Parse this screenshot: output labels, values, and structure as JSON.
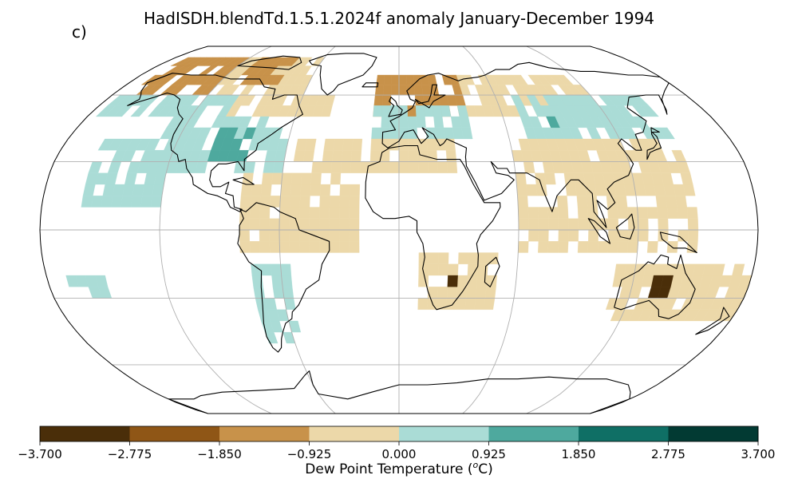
{
  "title": "HadISDH.blendTd.1.5.1.2024f anomaly January-December 1994",
  "panel_label": "c)",
  "colors": {
    "land": "#ffffff",
    "coast": "#000000",
    "grid": "#b0b0b0",
    "bins": [
      "#4a2e09",
      "#8f5616",
      "#c8924a",
      "#ecd8a9",
      "#aadcd6",
      "#4ea99e",
      "#0f6f65",
      "#023a33"
    ]
  },
  "colorbar": {
    "ticks": [
      "−3.700",
      "−2.775",
      "−1.850",
      "−0.925",
      "0.000",
      "0.925",
      "1.850",
      "2.775",
      "3.700"
    ],
    "label_main": "Dew Point Temperature (",
    "label_sup": "o",
    "label_end": "C)"
  },
  "chart_data": {
    "type": "heatmap",
    "projection": "Robinson",
    "variable": "Dew Point Temperature anomaly",
    "units": "°C",
    "levels": [
      -3.7,
      -2.775,
      -1.85,
      -0.925,
      0.0,
      0.925,
      1.85,
      2.775,
      3.7
    ],
    "regions": [
      {
        "lat": [
          60,
          80
        ],
        "lon": [
          -170,
          -120
        ],
        "bin": 2
      },
      {
        "lat": [
          60,
          80
        ],
        "lon": [
          -120,
          -60
        ],
        "bin": 3
      },
      {
        "lat": [
          65,
          80
        ],
        "lon": [
          -110,
          -80
        ],
        "bin": 2
      },
      {
        "lat": [
          50,
          60
        ],
        "lon": [
          -175,
          -100
        ],
        "bin": 4
      },
      {
        "lat": [
          50,
          60
        ],
        "lon": [
          -100,
          -40
        ],
        "bin": 3
      },
      {
        "lat": [
          50,
          70
        ],
        "lon": [
          -15,
          40
        ],
        "bin": 2
      },
      {
        "lat": [
          50,
          70
        ],
        "lon": [
          40,
          120
        ],
        "bin": 3
      },
      {
        "lat": [
          40,
          60
        ],
        "lon": [
          70,
          150
        ],
        "bin": 4
      },
      {
        "lat": [
          40,
          55
        ],
        "lon": [
          -15,
          40
        ],
        "bin": 4
      },
      {
        "lat": [
          25,
          50
        ],
        "lon": [
          -130,
          -60
        ],
        "bin": 4
      },
      {
        "lat": [
          10,
          40
        ],
        "lon": [
          -160,
          -120
        ],
        "bin": 4
      },
      {
        "lat": [
          25,
          40
        ],
        "lon": [
          -55,
          30
        ],
        "bin": 3
      },
      {
        "lat": [
          -10,
          40
        ],
        "lon": [
          60,
          150
        ],
        "bin": 3
      },
      {
        "lat": [
          -10,
          25
        ],
        "lon": [
          -80,
          -20
        ],
        "bin": 3
      },
      {
        "lat": [
          -50,
          -15
        ],
        "lon": [
          -75,
          -55
        ],
        "bin": 4
      },
      {
        "lat": [
          -35,
          -10
        ],
        "lon": [
          10,
          50
        ],
        "bin": 3
      },
      {
        "lat": [
          -40,
          -15
        ],
        "lon": [
          110,
          180
        ],
        "bin": 3
      },
      {
        "lat": [
          -30,
          -20
        ],
        "lon": [
          -170,
          -150
        ],
        "bin": 4
      },
      {
        "lat": [
          -30,
          -20
        ],
        "lon": [
          130,
          140
        ],
        "bin": 0
      },
      {
        "lat": [
          -25,
          -20
        ],
        "lon": [
          25,
          30
        ],
        "bin": 0
      },
      {
        "lat": [
          30,
          45
        ],
        "lon": [
          -100,
          -80
        ],
        "bin": 5
      },
      {
        "lat": [
          45,
          50
        ],
        "lon": [
          80,
          90
        ],
        "bin": 5
      }
    ]
  }
}
